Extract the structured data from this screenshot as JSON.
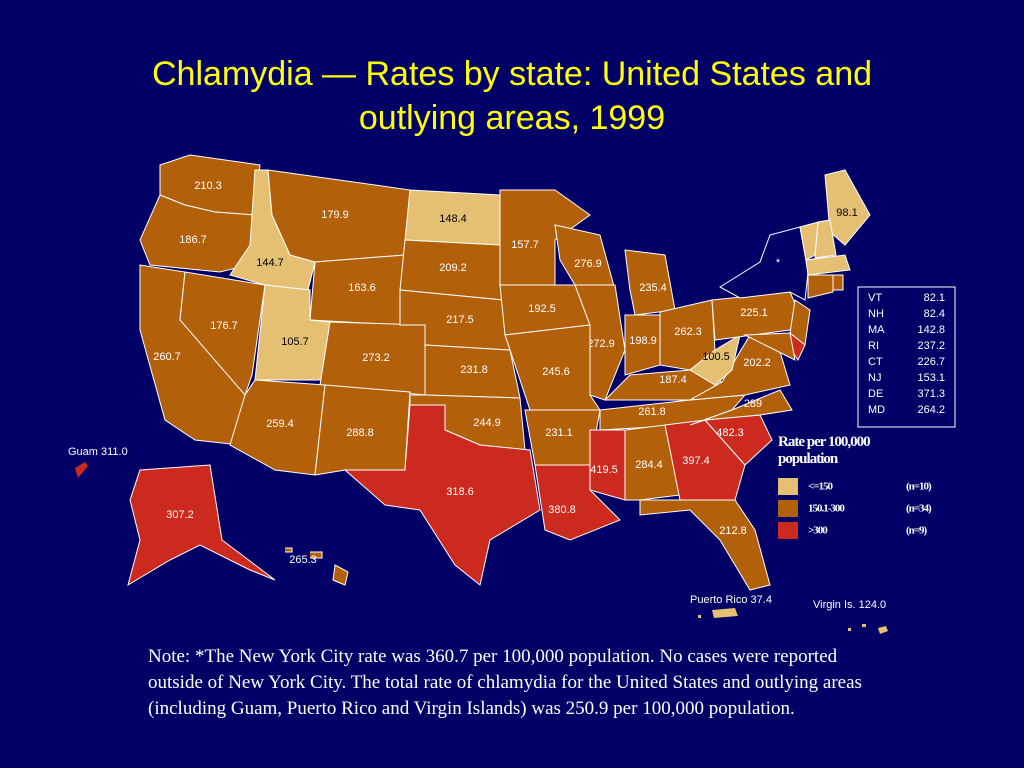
{
  "title": "Chlamydia  —  Rates by state: United States and outlying areas, 1999",
  "map": {
    "regions": [
      {
        "value": 210.3,
        "color": "#b3600a"
      },
      {
        "value": 186.7,
        "color": "#b3600a"
      },
      {
        "value": 260.7,
        "color": "#b3600a"
      },
      {
        "value": 176.7,
        "color": "#b3600a"
      },
      {
        "value": 144.7,
        "color": "#e5c073"
      },
      {
        "value": 179.9,
        "color": "#b3600a"
      },
      {
        "value": 163.6,
        "color": "#b3600a"
      },
      {
        "value": 105.7,
        "color": "#e5c073"
      },
      {
        "value": 273.2,
        "color": "#b3600a"
      },
      {
        "value": 259.4,
        "color": "#b3600a"
      },
      {
        "value": 288.8,
        "color": "#b3600a"
      },
      {
        "value": 148.4,
        "color": "#e5c073"
      },
      {
        "value": 209.2,
        "color": "#b3600a"
      },
      {
        "value": 217.5,
        "color": "#b3600a"
      },
      {
        "value": 231.8,
        "color": "#b3600a"
      },
      {
        "value": 244.9,
        "color": "#b3600a"
      },
      {
        "value": 318.6,
        "color": "#cc2a1e"
      },
      {
        "value": 157.7,
        "color": "#b3600a"
      },
      {
        "value": 192.5,
        "color": "#b3600a"
      },
      {
        "value": 276.9,
        "color": "#b3600a"
      },
      {
        "value": 272.9,
        "color": "#b3600a"
      },
      {
        "value": 245.6,
        "color": "#b3600a"
      },
      {
        "value": 231.1,
        "color": "#b3600a"
      },
      {
        "value": 380.8,
        "color": "#cc2a1e"
      },
      {
        "value": 235.4,
        "color": "#b3600a"
      },
      {
        "value": 198.9,
        "color": "#b3600a"
      },
      {
        "value": 262.3,
        "color": "#b3600a"
      },
      {
        "value": 187.4,
        "color": "#b3600a"
      },
      {
        "value": 261.8,
        "color": "#b3600a"
      },
      {
        "value": 419.5,
        "color": "#cc2a1e"
      },
      {
        "value": 284.4,
        "color": "#b3600a"
      },
      {
        "value": 397.4,
        "color": "#cc2a1e"
      },
      {
        "value": 212.8,
        "color": "#b3600a"
      },
      {
        "value": 482.3,
        "color": "#cc2a1e"
      },
      {
        "value": 289.0,
        "color": "#b3600a"
      },
      {
        "value": 202.2,
        "color": "#b3600a"
      },
      {
        "value": 100.5,
        "color": "#e5c073"
      },
      {
        "value": 225.1,
        "color": "#b3600a"
      },
      {
        "label": "*",
        "color": "#000066"
      },
      {
        "value": 98.1,
        "color": "#e5c073"
      },
      {
        "value": 307.2,
        "color": "#cc2a1e"
      },
      {
        "value": 265.3,
        "color": "#b3600a"
      }
    ],
    "inset_table": [
      {
        "state": "VT",
        "value": 82.1,
        "color": "#e5c073"
      },
      {
        "state": "NH",
        "value": 82.4,
        "color": "#e5c073"
      },
      {
        "state": "MA",
        "value": 142.8,
        "color": "#e5c073"
      },
      {
        "state": "RI",
        "value": 237.2,
        "color": "#b3600a"
      },
      {
        "state": "CT",
        "value": 226.7,
        "color": "#b3600a"
      },
      {
        "state": "NJ",
        "value": 153.1,
        "color": "#b3600a"
      },
      {
        "state": "DE",
        "value": 371.3,
        "color": "#cc2a1e"
      },
      {
        "state": "MD",
        "value": 264.2,
        "color": "#b3600a"
      }
    ],
    "outlying": [
      {
        "label": "Guam 311.0",
        "color": "#cc2a1e"
      },
      {
        "label": "Puerto Rico 37.4",
        "color": "#e5c073"
      },
      {
        "label": "Virgin Is. 124.0",
        "color": "#e5c073"
      }
    ],
    "legend": {
      "title": "Rate per 100,000 population",
      "entries": [
        {
          "label": "<=150",
          "count": "(n=10)",
          "color": "#e5c073"
        },
        {
          "label": "150.1-300",
          "count": "(n=34)",
          "color": "#b3600a"
        },
        {
          "label": ">300",
          "count": "(n=9)",
          "color": "#cc2a1e"
        }
      ]
    }
  },
  "note": "Note:   *The New York City rate was 360.7 per 100,000 population. No cases were reported outside of New York City. The total rate of chlamydia for the United States and outlying areas (including Guam, Puerto Rico and Virgin Islands) was 250.9 per 100,000 population."
}
